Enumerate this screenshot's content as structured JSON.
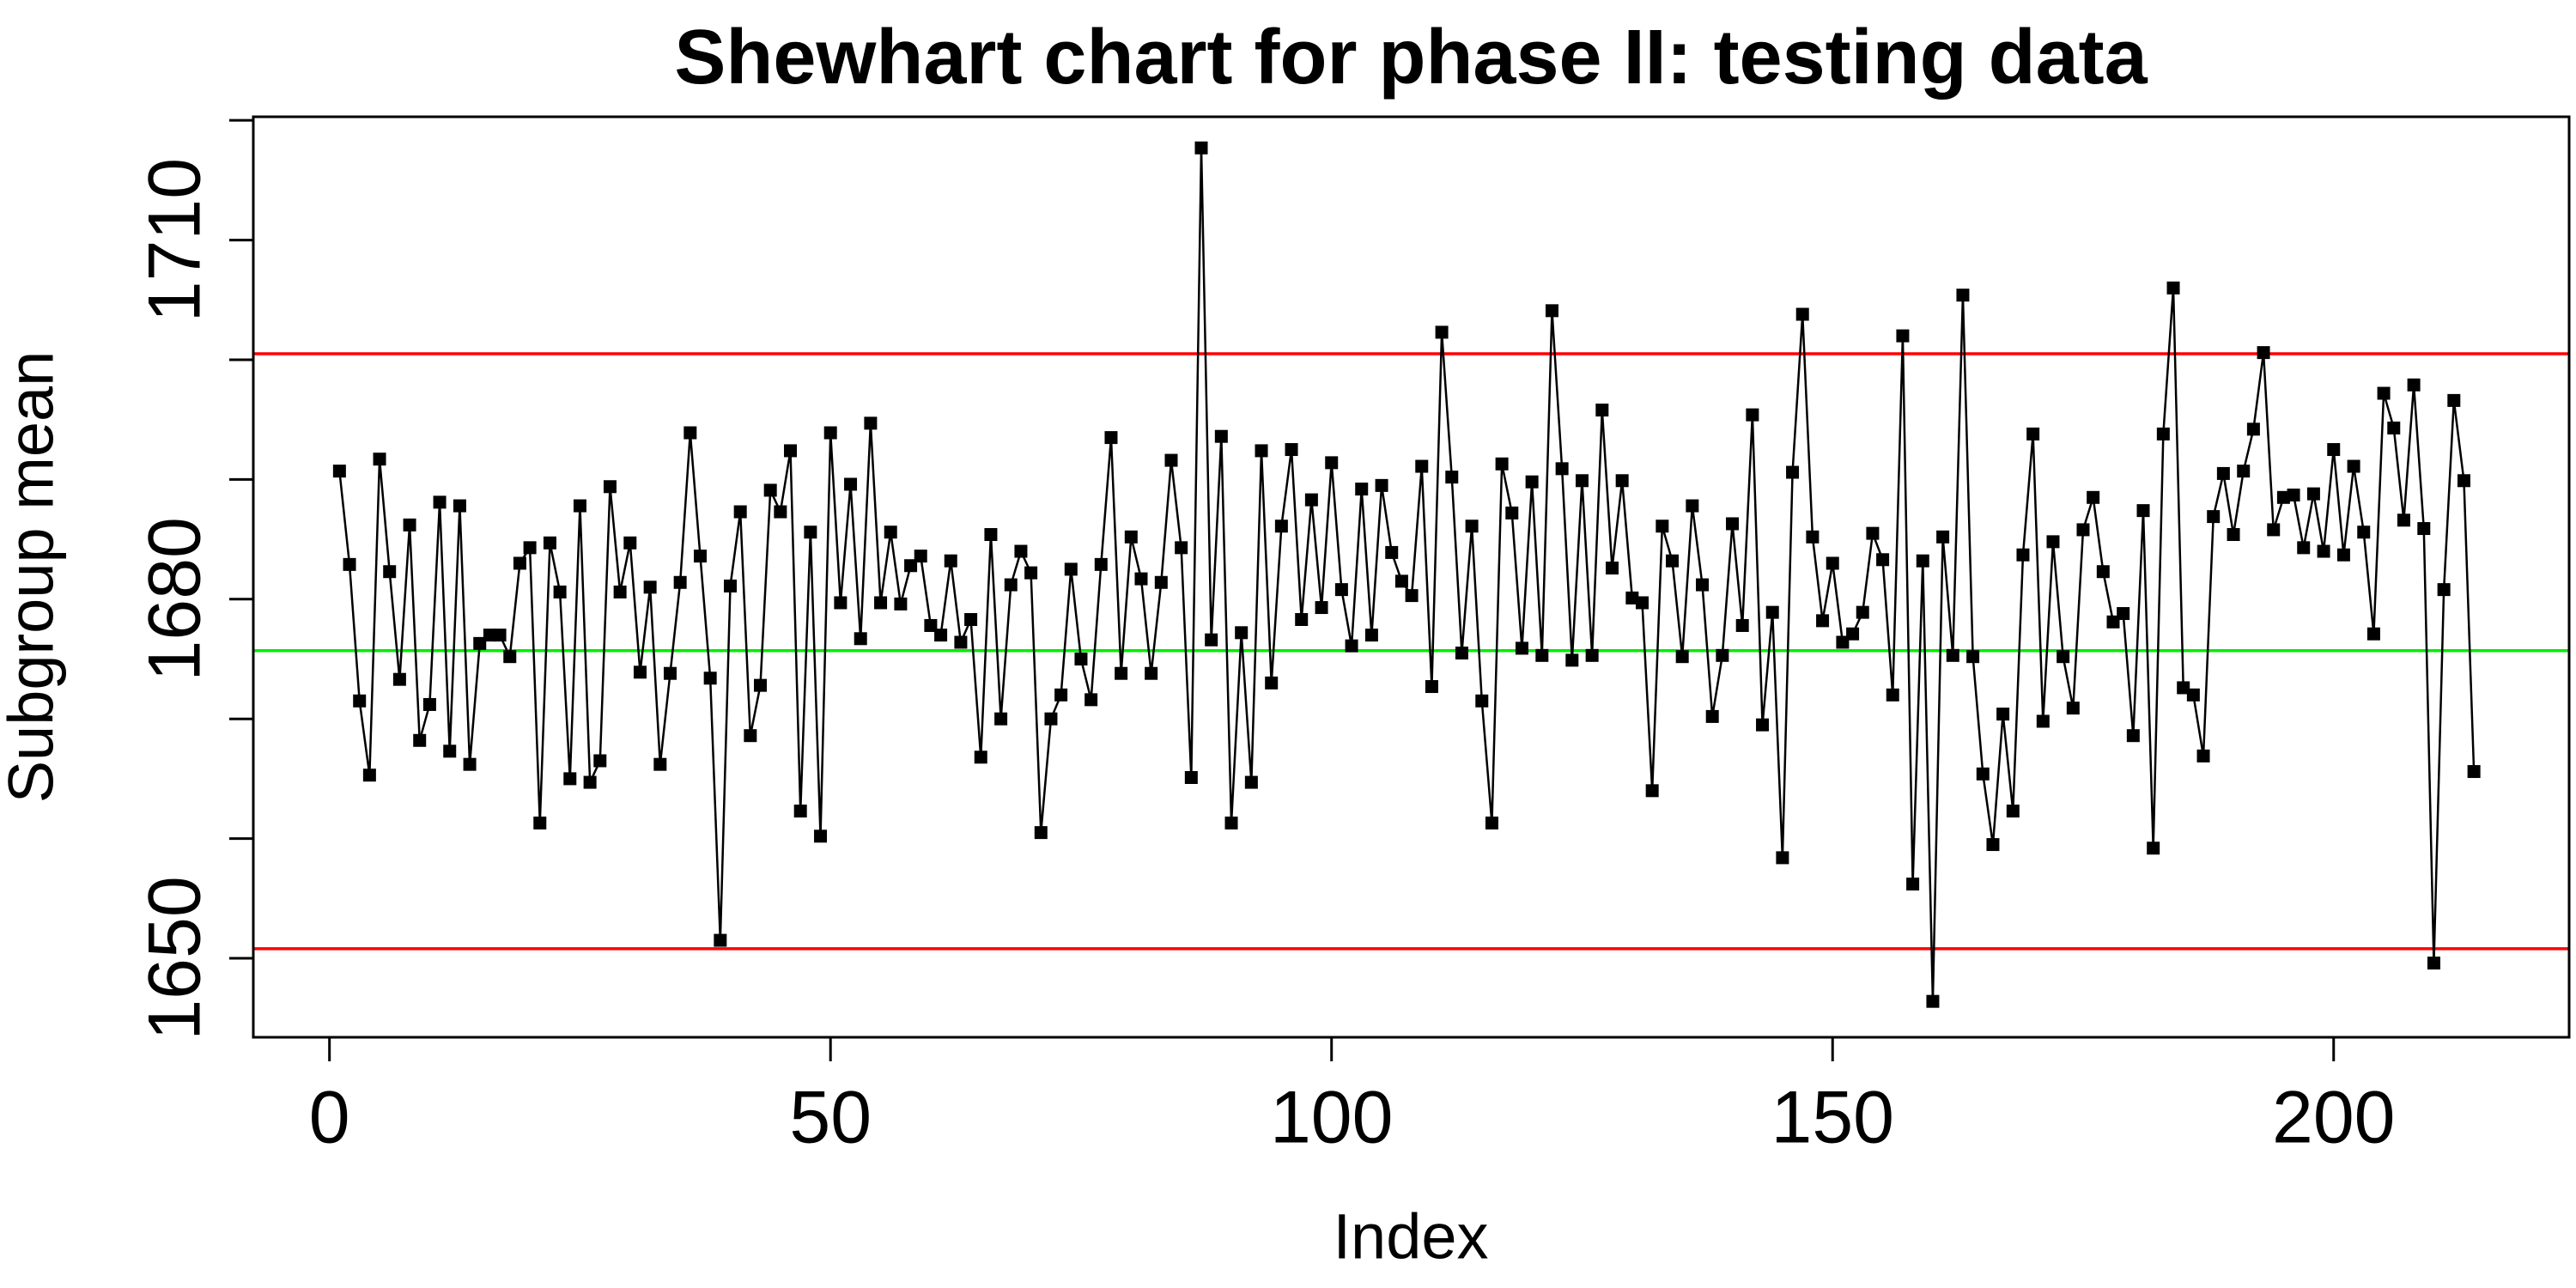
{
  "chart_data": {
    "type": "line",
    "title": "Shewhart chart for phase II: testing data",
    "x_label": "Index",
    "y_label": "Subgroup mean",
    "x": [
      1,
      2,
      3,
      4,
      5,
      6,
      7,
      8,
      9,
      10,
      11,
      12,
      13,
      14,
      15,
      16,
      17,
      18,
      19,
      20,
      21,
      22,
      23,
      24,
      25,
      26,
      27,
      28,
      29,
      30,
      31,
      32,
      33,
      34,
      35,
      36,
      37,
      38,
      39,
      40,
      41,
      42,
      43,
      44,
      45,
      46,
      47,
      48,
      49,
      50,
      51,
      52,
      53,
      54,
      55,
      56,
      57,
      58,
      59,
      60,
      61,
      62,
      63,
      64,
      65,
      66,
      67,
      68,
      69,
      70,
      71,
      72,
      73,
      74,
      75,
      76,
      77,
      78,
      79,
      80,
      81,
      82,
      83,
      84,
      85,
      86,
      87,
      88,
      89,
      90,
      91,
      92,
      93,
      94,
      95,
      96,
      97,
      98,
      99,
      100,
      101,
      102,
      103,
      104,
      105,
      106,
      107,
      108,
      109,
      110,
      111,
      112,
      113,
      114,
      115,
      116,
      117,
      118,
      119,
      120,
      121,
      122,
      123,
      124,
      125,
      126,
      127,
      128,
      129,
      130,
      131,
      132,
      133,
      134,
      135,
      136,
      137,
      138,
      139,
      140,
      141,
      142,
      143,
      144,
      145,
      146,
      147,
      148,
      149,
      150,
      151,
      152,
      153,
      154,
      155,
      156,
      157,
      158,
      159,
      160,
      161,
      162,
      163,
      164,
      165,
      166,
      167,
      168,
      169,
      170,
      171,
      172,
      173,
      174,
      175,
      176,
      177,
      178,
      179,
      180,
      181,
      182,
      183,
      184,
      185,
      186,
      187,
      188,
      189,
      190,
      191,
      192,
      193,
      194,
      195,
      196,
      197,
      198,
      199,
      200,
      201,
      202,
      203,
      204,
      205,
      206,
      207,
      208,
      209,
      210,
      211,
      212,
      213,
      214
    ],
    "values": [
      1690.7,
      1682.9,
      1671.5,
      1665.3,
      1691.7,
      1682.3,
      1673.3,
      1686.2,
      1668.2,
      1671.2,
      1688.1,
      1667.3,
      1687.8,
      1666.2,
      1676.3,
      1677.0,
      1677.0,
      1675.2,
      1683.0,
      1684.3,
      1661.3,
      1684.7,
      1680.6,
      1665.0,
      1687.8,
      1664.7,
      1666.5,
      1689.4,
      1680.6,
      1684.7,
      1673.9,
      1681.0,
      1666.2,
      1673.8,
      1681.4,
      1693.9,
      1683.6,
      1673.4,
      1651.5,
      1681.1,
      1687.3,
      1668.6,
      1672.8,
      1689.1,
      1687.3,
      1692.4,
      1662.3,
      1685.6,
      1660.2,
      1693.9,
      1679.7,
      1689.6,
      1676.7,
      1694.7,
      1679.7,
      1685.6,
      1679.6,
      1682.8,
      1683.6,
      1677.8,
      1677.0,
      1683.2,
      1676.4,
      1678.3,
      1666.8,
      1685.4,
      1670.0,
      1681.2,
      1684.0,
      1682.2,
      1660.5,
      1670.0,
      1672.0,
      1682.5,
      1675.0,
      1671.6,
      1682.9,
      1693.5,
      1673.8,
      1685.2,
      1681.7,
      1673.8,
      1681.4,
      1691.6,
      1684.3,
      1665.1,
      1717.7,
      1676.6,
      1693.6,
      1661.3,
      1677.2,
      1664.7,
      1692.4,
      1673.0,
      1686.1,
      1692.5,
      1678.3,
      1688.3,
      1679.3,
      1691.4,
      1680.8,
      1676.1,
      1689.2,
      1677.0,
      1689.5,
      1683.9,
      1681.5,
      1680.3,
      1691.1,
      1672.7,
      1702.3,
      1690.2,
      1675.5,
      1686.1,
      1671.5,
      1661.3,
      1691.3,
      1687.2,
      1675.9,
      1689.8,
      1675.3,
      1704.1,
      1690.9,
      1674.9,
      1689.9,
      1675.3,
      1695.8,
      1682.6,
      1689.9,
      1680.1,
      1679.7,
      1664.0,
      1686.1,
      1683.2,
      1675.2,
      1687.8,
      1681.2,
      1670.2,
      1675.3,
      1686.3,
      1677.8,
      1695.4,
      1669.5,
      1678.9,
      1658.4,
      1690.6,
      1703.8,
      1685.2,
      1678.2,
      1683.0,
      1676.4,
      1677.1,
      1678.9,
      1685.5,
      1683.3,
      1672.0,
      1702.0,
      1656.2,
      1683.2,
      1646.4,
      1685.2,
      1675.3,
      1705.4,
      1675.2,
      1665.4,
      1659.5,
      1670.4,
      1662.3,
      1683.7,
      1693.8,
      1669.8,
      1684.8,
      1675.2,
      1670.9,
      1685.8,
      1688.5,
      1682.3,
      1678.1,
      1678.8,
      1668.6,
      1687.4,
      1659.2,
      1693.8,
      1706.0,
      1672.6,
      1672.0,
      1666.9,
      1686.9,
      1690.5,
      1685.4,
      1690.7,
      1694.2,
      1700.6,
      1685.8,
      1688.5,
      1688.7,
      1684.3,
      1688.8,
      1684.0,
      1692.5,
      1683.7,
      1691.1,
      1685.6,
      1677.1,
      1697.2,
      1694.3,
      1686.6,
      1697.9,
      1685.9,
      1649.6,
      1680.8,
      1696.6,
      1689.9,
      1665.6
    ],
    "color": "#000000",
    "xlim": [
      -7.6,
      223.5
    ],
    "ylim": [
      1643.4,
      1720.3
    ],
    "xticks": [
      0,
      50,
      100,
      150,
      200
    ],
    "yticks": [
      1650,
      1680,
      1710
    ],
    "y_minor_ticks": [
      1660,
      1670,
      1690,
      1700,
      1720
    ],
    "reference_lines": [
      {
        "value": 1700.5,
        "color": "#ff0000"
      },
      {
        "value": 1675.7,
        "color": "#00ee00"
      },
      {
        "value": 1650.8,
        "color": "#ff0000"
      }
    ]
  }
}
